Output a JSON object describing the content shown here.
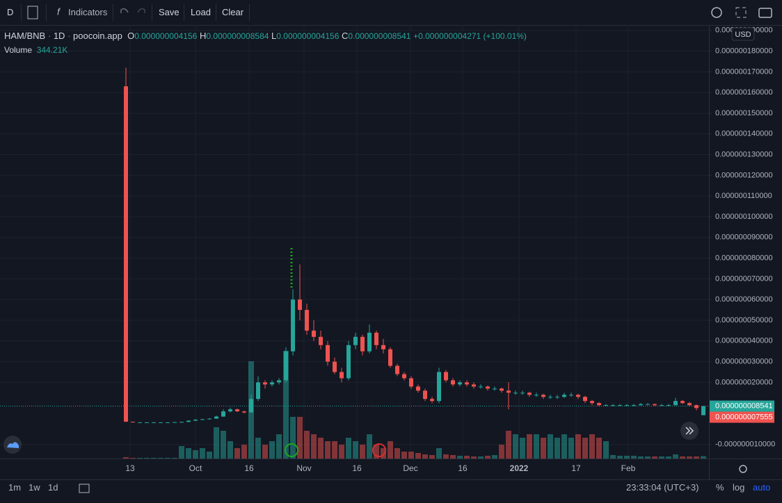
{
  "toolbar": {
    "interval": "D",
    "indicators": "Indicators",
    "save": "Save",
    "load": "Load",
    "clear": "Clear"
  },
  "legend": {
    "symbol": "HAM/BNB",
    "interval": "1D",
    "source": "poocoin.app",
    "o_label": "O",
    "o_value": "0.000000004156",
    "h_label": "H",
    "h_value": "0.000000008584",
    "l_label": "L",
    "l_value": "0.000000004156",
    "c_label": "C",
    "c_value": "0.000000008541",
    "change": "+0.000000004271 (+100.01%)",
    "volume_label": "Volume",
    "volume_value": "344.21K"
  },
  "currency": "USD",
  "chart_data": {
    "type": "candlestick",
    "up_color": "#26a69a",
    "down_color": "#ef5350",
    "ylim": [
      -1.678e-08,
      1.926e-07
    ],
    "yticks": [
      {
        "value": 1.9e-07,
        "label": "0.000000190000"
      },
      {
        "value": 1.8e-07,
        "label": "0.000000180000"
      },
      {
        "value": 1.7e-07,
        "label": "0.000000170000"
      },
      {
        "value": 1.6e-07,
        "label": "0.000000160000"
      },
      {
        "value": 1.5e-07,
        "label": "0.000000150000"
      },
      {
        "value": 1.4e-07,
        "label": "0.000000140000"
      },
      {
        "value": 1.3e-07,
        "label": "0.000000130000"
      },
      {
        "value": 1.2e-07,
        "label": "0.000000120000"
      },
      {
        "value": 1.1e-07,
        "label": "0.000000110000"
      },
      {
        "value": 1e-07,
        "label": "0.000000100000"
      },
      {
        "value": 9e-08,
        "label": "0.000000090000"
      },
      {
        "value": 8e-08,
        "label": "0.000000080000"
      },
      {
        "value": 7e-08,
        "label": "0.000000070000"
      },
      {
        "value": 6e-08,
        "label": "0.000000060000"
      },
      {
        "value": 5e-08,
        "label": "0.000000050000"
      },
      {
        "value": 4e-08,
        "label": "0.000000040000"
      },
      {
        "value": 3e-08,
        "label": "0.000000030000"
      },
      {
        "value": 2e-08,
        "label": "0.000000020000"
      },
      {
        "value": -1e-08,
        "label": "-0.000000010000"
      }
    ],
    "grid": true,
    "time_labels": [
      "13",
      "Oct",
      "16",
      "Nov",
      "16",
      "Dec",
      "16",
      "2022",
      "17",
      "Feb"
    ],
    "price_badges": [
      {
        "value": 8.541e-09,
        "label": "0.000000008541",
        "color": "#26a69a"
      },
      {
        "value": 7.555e-09,
        "label": "0.000000007555",
        "color": "#ef5350"
      }
    ],
    "ohlc": [
      [
        1.63e-07,
        1.72e-07,
        9e-10,
        1e-09
      ],
      [
        1e-09,
        1.1e-09,
        6e-10,
        7e-10
      ],
      [
        7e-10,
        8e-10,
        6e-10,
        7e-10
      ],
      [
        7e-10,
        8e-10,
        6e-10,
        7e-10
      ],
      [
        7e-10,
        8e-10,
        6e-10,
        7e-10
      ],
      [
        7e-10,
        8e-10,
        6e-10,
        7e-10
      ],
      [
        7e-10,
        8e-10,
        6e-10,
        7e-10
      ],
      [
        7e-10,
        9e-10,
        6e-10,
        8e-10
      ],
      [
        8e-10,
        1e-09,
        7e-10,
        9e-10
      ],
      [
        9e-10,
        1.7e-09,
        8e-10,
        1.5e-09
      ],
      [
        1.5e-09,
        2.2e-09,
        1.4e-09,
        2e-09
      ],
      [
        2e-09,
        2.4e-09,
        1.8e-09,
        2.2e-09
      ],
      [
        2.2e-09,
        2.7e-09,
        2e-09,
        2.5e-09
      ],
      [
        2.5e-09,
        4e-09,
        2.4e-09,
        3.5e-09
      ],
      [
        3.5e-09,
        7e-09,
        3.3e-09,
        6e-09
      ],
      [
        6e-09,
        7.8e-09,
        5.5e-09,
        7e-09
      ],
      [
        7e-09,
        7.4e-09,
        5.8e-09,
        6e-09
      ],
      [
        6e-09,
        6.3e-09,
        5e-09,
        5.5e-09
      ],
      [
        5.5e-09,
        1.4e-08,
        5.3e-09,
        1.2e-08
      ],
      [
        1.2e-08,
        2.3e-08,
        1.1e-08,
        2e-08
      ],
      [
        2e-08,
        2.1e-08,
        1.7e-08,
        1.9e-08
      ],
      [
        1.9e-08,
        2.1e-08,
        1.8e-08,
        2e-08
      ],
      [
        2e-08,
        2.2e-08,
        1.9e-08,
        2.1e-08
      ],
      [
        2.1e-08,
        3.7e-08,
        2e-08,
        3.5e-08
      ],
      [
        3.5e-08,
        6.5e-08,
        3.3e-08,
        6e-08
      ],
      [
        6e-08,
        7.7e-08,
        5e-08,
        5.5e-08
      ],
      [
        5.5e-08,
        5.8e-08,
        4.3e-08,
        4.5e-08
      ],
      [
        4.5e-08,
        5e-08,
        4e-08,
        4.2e-08
      ],
      [
        4.2e-08,
        4.5e-08,
        3.6e-08,
        3.8e-08
      ],
      [
        3.8e-08,
        4e-08,
        2.8e-08,
        3e-08
      ],
      [
        3e-08,
        3.2e-08,
        2.4e-08,
        2.5e-08
      ],
      [
        2.5e-08,
        2.7e-08,
        2e-08,
        2.2e-08
      ],
      [
        2.2e-08,
        4e-08,
        2.1e-08,
        3.8e-08
      ],
      [
        3.8e-08,
        4.4e-08,
        3.6e-08,
        4.2e-08
      ],
      [
        4.2e-08,
        4.3e-08,
        3.3e-08,
        3.5e-08
      ],
      [
        3.5e-08,
        4.8e-08,
        3.4e-08,
        4.4e-08
      ],
      [
        4.4e-08,
        4.5e-08,
        3.6e-08,
        3.8e-08
      ],
      [
        3.8e-08,
        4.1e-08,
        3.4e-08,
        3.6e-08
      ],
      [
        3.6e-08,
        3.7e-08,
        2.7e-08,
        2.8e-08
      ],
      [
        2.8e-08,
        2.9e-08,
        2.3e-08,
        2.4e-08
      ],
      [
        2.4e-08,
        2.5e-08,
        2.1e-08,
        2.2e-08
      ],
      [
        2.2e-08,
        2.3e-08,
        1.7e-08,
        1.8e-08
      ],
      [
        1.8e-08,
        1.9e-08,
        1.5e-08,
        1.6e-08
      ],
      [
        1.6e-08,
        1.7e-08,
        1.1e-08,
        1.2e-08
      ],
      [
        1.2e-08,
        1.3e-08,
        1e-08,
        1.1e-08
      ],
      [
        1.1e-08,
        2.7e-08,
        1e-08,
        2.5e-08
      ],
      [
        2.5e-08,
        2.6e-08,
        2e-08,
        2.1e-08
      ],
      [
        2.1e-08,
        2.2e-08,
        1.8e-08,
        1.9e-08
      ],
      [
        1.9e-08,
        2.1e-08,
        1.8e-08,
        2e-08
      ],
      [
        2e-08,
        2.1e-08,
        1.8e-08,
        1.9e-08
      ],
      [
        1.9e-08,
        2e-08,
        1.7e-08,
        1.8e-08
      ],
      [
        1.8e-08,
        1.9e-08,
        1.7e-08,
        1.8e-08
      ],
      [
        1.8e-08,
        1.85e-08,
        1.6e-08,
        1.7e-08
      ],
      [
        1.7e-08,
        1.8e-08,
        1.6e-08,
        1.7e-08
      ],
      [
        1.7e-08,
        1.75e-08,
        1.5e-08,
        1.6e-08
      ],
      [
        1.6e-08,
        2e-08,
        7e-09,
        1.5e-08
      ],
      [
        1.5e-08,
        1.6e-08,
        1.4e-08,
        1.5e-08
      ],
      [
        1.5e-08,
        1.6e-08,
        1.4e-08,
        1.5e-08
      ],
      [
        1.5e-08,
        1.55e-08,
        1.3e-08,
        1.4e-08
      ],
      [
        1.4e-08,
        1.5e-08,
        1.3e-08,
        1.4e-08
      ],
      [
        1.4e-08,
        1.45e-08,
        1.2e-08,
        1.3e-08
      ],
      [
        1.3e-08,
        1.4e-08,
        1.2e-08,
        1.3e-08
      ],
      [
        1.3e-08,
        1.4e-08,
        1.2e-08,
        1.3e-08
      ],
      [
        1.3e-08,
        1.5e-08,
        1.25e-08,
        1.4e-08
      ],
      [
        1.4e-08,
        1.5e-08,
        1.3e-08,
        1.4e-08
      ],
      [
        1.4e-08,
        1.45e-08,
        1.2e-08,
        1.3e-08
      ],
      [
        1.3e-08,
        1.35e-08,
        1e-08,
        1.1e-08
      ],
      [
        1.1e-08,
        1.15e-08,
        9e-09,
        1e-08
      ],
      [
        1e-08,
        1.05e-08,
        8.5e-09,
        9e-09
      ],
      [
        9e-09,
        9.5e-09,
        8.5e-09,
        9e-09
      ],
      [
        9e-09,
        9.5e-09,
        8.5e-09,
        9e-09
      ],
      [
        9e-09,
        9.5e-09,
        8.5e-09,
        9e-09
      ],
      [
        9e-09,
        9.5e-09,
        8.5e-09,
        9e-09
      ],
      [
        9e-09,
        9.5e-09,
        8.5e-09,
        9e-09
      ],
      [
        9e-09,
        1e-08,
        8.8e-09,
        9.5e-09
      ],
      [
        9.5e-09,
        1e-08,
        9e-09,
        9.5e-09
      ],
      [
        9.5e-09,
        9.8e-09,
        8.6e-09,
        9e-09
      ],
      [
        9e-09,
        9.5e-09,
        8.6e-09,
        9e-09
      ],
      [
        9e-09,
        9.5e-09,
        8.6e-09,
        9e-09
      ],
      [
        9e-09,
        1.25e-08,
        8.8e-09,
        1.1e-08
      ],
      [
        1.1e-08,
        1.15e-08,
        9.5e-09,
        1e-08
      ],
      [
        1e-08,
        1.05e-08,
        8.5e-09,
        9e-09
      ],
      [
        9e-09,
        9.3e-09,
        6.5e-09,
        7.6e-09
      ],
      [
        4.156e-09,
        8.584e-09,
        4.156e-09,
        8.541e-09
      ]
    ],
    "volume": [
      200000,
      100000,
      100000,
      100000,
      100000,
      100000,
      100000,
      100000,
      1800000,
      1500000,
      1200000,
      1500000,
      1000000,
      4500000,
      4000000,
      2500000,
      1500000,
      2000000,
      14000000,
      3000000,
      2000000,
      2500000,
      3500000,
      15500000,
      6000000,
      6000000,
      4000000,
      3500000,
      3000000,
      2500000,
      2500000,
      2000000,
      3000000,
      2500000,
      2000000,
      3500000,
      2000000,
      1500000,
      2500000,
      1500000,
      1000000,
      1000000,
      800000,
      600000,
      500000,
      1500000,
      600000,
      500000,
      400000,
      400000,
      300000,
      300000,
      400000,
      500000,
      2000000,
      4000000,
      3500000,
      3000000,
      3500000,
      3500000,
      3000000,
      3500000,
      3000000,
      3500000,
      3000000,
      3500000,
      3000000,
      3500000,
      3000000,
      2500000,
      500000,
      400000,
      400000,
      400000,
      300000,
      300000,
      300000,
      300000,
      300000,
      600000,
      300000,
      300000,
      300000,
      344210
    ]
  },
  "bottom": {
    "range_1m": "1m",
    "range_1w": "1w",
    "range_1d": "1d",
    "clock": "23:33:04 (UTC+3)",
    "percent": "%",
    "log": "log",
    "auto": "auto"
  }
}
